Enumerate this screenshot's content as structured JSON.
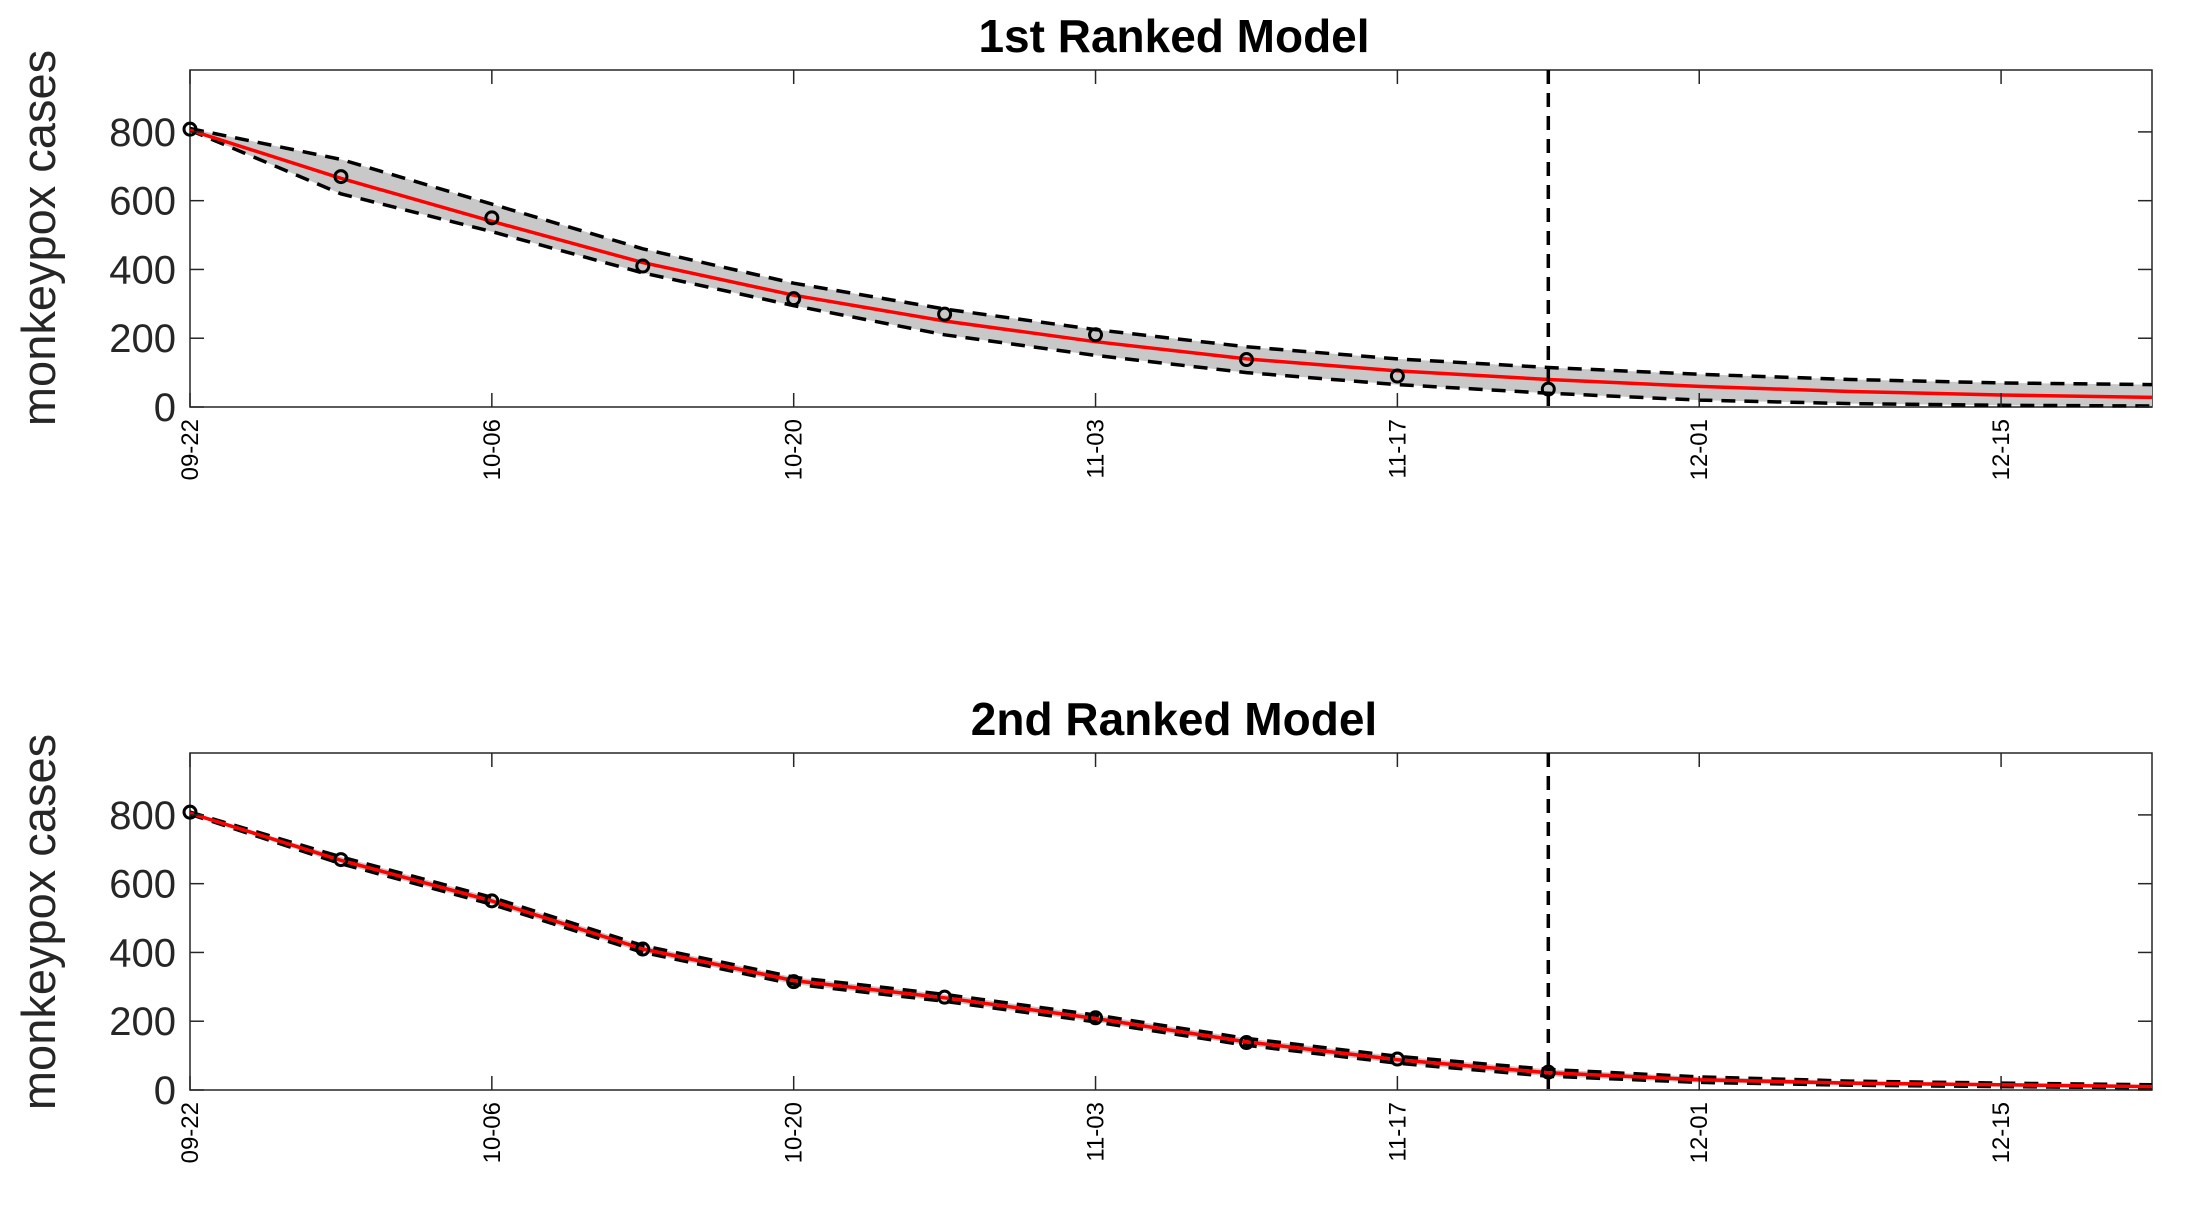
{
  "chart_data": [
    {
      "type": "line",
      "title": "1st Ranked Model",
      "xlabel": "",
      "ylabel": "monkeypox cases",
      "ylim": [
        0,
        980
      ],
      "yticks": [
        "0",
        "200",
        "400",
        "600",
        "800"
      ],
      "xlim": [
        "09-22",
        "12-22"
      ],
      "xticks": [
        "09-22",
        "10-06",
        "10-20",
        "11-03",
        "11-17",
        "12-01",
        "12-15"
      ],
      "forecast_start": "11-24",
      "grid": false,
      "colors": {
        "fit": "#ff0000",
        "band": "#c8c8c8",
        "bounds": "#000000",
        "observed": "#000000",
        "forecast_line": "#000000"
      },
      "observed": {
        "x": [
          "09-22",
          "09-29",
          "10-06",
          "10-13",
          "10-20",
          "10-27",
          "11-03",
          "11-10",
          "11-17",
          "11-24"
        ],
        "y": [
          808,
          670,
          550,
          410,
          315,
          270,
          210,
          138,
          90,
          52
        ]
      },
      "fit": {
        "x": [
          "09-22",
          "09-29",
          "10-06",
          "10-13",
          "10-20",
          "10-27",
          "11-03",
          "11-10",
          "11-17",
          "11-24",
          "12-01",
          "12-08",
          "12-15",
          "12-22"
        ],
        "y": [
          805,
          665,
          540,
          420,
          325,
          250,
          190,
          140,
          105,
          80,
          60,
          45,
          35,
          28
        ]
      },
      "upper_bound": {
        "x": [
          "09-22",
          "09-29",
          "10-06",
          "10-13",
          "10-20",
          "10-27",
          "11-03",
          "11-10",
          "11-17",
          "11-24",
          "12-01",
          "12-08",
          "12-15",
          "12-22"
        ],
        "y": [
          810,
          720,
          590,
          460,
          360,
          285,
          225,
          175,
          140,
          115,
          95,
          80,
          70,
          65
        ]
      },
      "lower_bound": {
        "x": [
          "09-22",
          "09-29",
          "10-06",
          "10-13",
          "10-20",
          "10-27",
          "11-03",
          "11-10",
          "11-17",
          "11-24",
          "12-01",
          "12-08",
          "12-15",
          "12-22"
        ],
        "y": [
          805,
          620,
          510,
          390,
          295,
          210,
          150,
          100,
          65,
          40,
          20,
          10,
          5,
          3
        ]
      }
    },
    {
      "type": "line",
      "title": "2nd Ranked Model",
      "xlabel": "",
      "ylabel": "monkeypox cases",
      "ylim": [
        0,
        980
      ],
      "yticks": [
        "0",
        "200",
        "400",
        "600",
        "800"
      ],
      "xlim": [
        "09-22",
        "12-22"
      ],
      "xticks": [
        "09-22",
        "10-06",
        "10-20",
        "11-03",
        "11-17",
        "12-01",
        "12-15"
      ],
      "forecast_start": "11-24",
      "grid": false,
      "colors": {
        "fit": "#ff0000",
        "band": "#c8c8c8",
        "bounds": "#000000",
        "observed": "#000000",
        "forecast_line": "#000000"
      },
      "observed": {
        "x": [
          "09-22",
          "09-29",
          "10-06",
          "10-13",
          "10-20",
          "10-27",
          "11-03",
          "11-10",
          "11-17",
          "11-24"
        ],
        "y": [
          808,
          670,
          550,
          410,
          315,
          270,
          210,
          138,
          90,
          52
        ]
      },
      "fit": {
        "x": [
          "09-22",
          "09-29",
          "10-06",
          "10-13",
          "10-20",
          "10-27",
          "11-03",
          "11-10",
          "11-17",
          "11-24",
          "12-01",
          "12-08",
          "12-15",
          "12-22"
        ],
        "y": [
          805,
          668,
          550,
          410,
          318,
          268,
          208,
          140,
          88,
          50,
          30,
          20,
          15,
          10
        ]
      },
      "upper_bound": {
        "x": [
          "09-22",
          "09-29",
          "10-06",
          "10-13",
          "10-20",
          "10-27",
          "11-03",
          "11-10",
          "11-17",
          "11-24",
          "12-01",
          "12-08",
          "12-15",
          "12-22"
        ],
        "y": [
          808,
          678,
          560,
          420,
          328,
          278,
          218,
          150,
          98,
          60,
          38,
          26,
          20,
          15
        ]
      },
      "lower_bound": {
        "x": [
          "09-22",
          "09-29",
          "10-06",
          "10-13",
          "10-20",
          "10-27",
          "11-03",
          "11-10",
          "11-17",
          "11-24",
          "12-01",
          "12-08",
          "12-15",
          "12-22"
        ],
        "y": [
          802,
          658,
          540,
          400,
          308,
          258,
          198,
          130,
          78,
          40,
          22,
          14,
          10,
          6
        ]
      }
    }
  ]
}
